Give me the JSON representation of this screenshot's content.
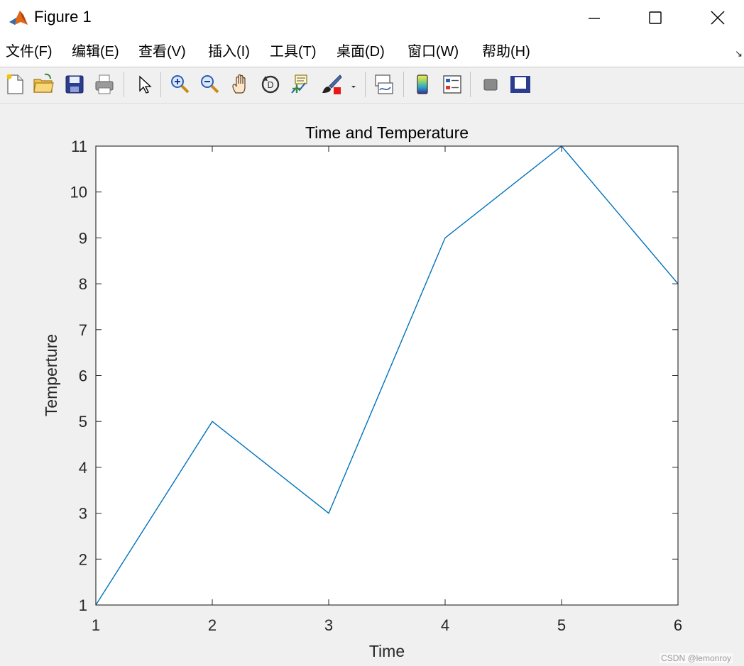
{
  "window": {
    "title": "Figure 1",
    "app_icon": "matlab-logo-icon",
    "controls": [
      "minimize-icon",
      "maximize-icon",
      "close-icon"
    ]
  },
  "menu": {
    "items": [
      {
        "label": "文件(F)"
      },
      {
        "label": "编辑(E)"
      },
      {
        "label": "查看(V)"
      },
      {
        "label": "插入(I)"
      },
      {
        "label": "工具(T)"
      },
      {
        "label": "桌面(D)"
      },
      {
        "label": "窗口(W)"
      },
      {
        "label": "帮助(H)"
      }
    ],
    "overflow_arrow": "↘"
  },
  "toolbar": {
    "icons": [
      "new-figure-icon",
      "open-file-icon",
      "save-icon",
      "print-icon",
      "pointer-icon",
      "zoom-in-icon",
      "zoom-out-icon",
      "pan-hand-icon",
      "rotate-3d-icon",
      "data-cursor-icon",
      "brush-icon",
      "brush-dropdown-icon",
      "link-plot-icon",
      "colorbar-icon",
      "legend-icon",
      "hide-plot-tools-icon",
      "show-plot-tools-icon"
    ]
  },
  "chart_data": {
    "type": "line",
    "title": "Time and Temperature",
    "xlabel": "Time",
    "ylabel": "Temperture",
    "x": [
      1,
      2,
      3,
      4,
      5,
      6
    ],
    "y": [
      1,
      5,
      3,
      9,
      11,
      8
    ],
    "xlim": [
      1,
      6
    ],
    "ylim": [
      1,
      11
    ],
    "xticks": [
      1,
      2,
      3,
      4,
      5,
      6
    ],
    "yticks": [
      1,
      2,
      3,
      4,
      5,
      6,
      7,
      8,
      9,
      10,
      11
    ],
    "grid": false,
    "line_color": "#0072BD"
  },
  "watermark": "CSDN @lemonroy"
}
